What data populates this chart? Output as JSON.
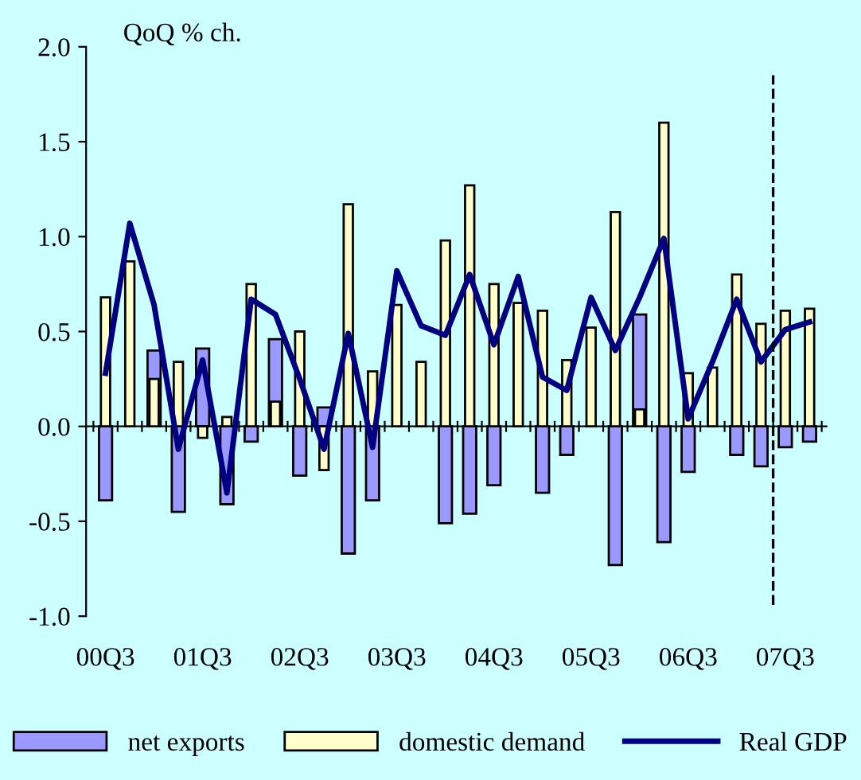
{
  "chart_data": {
    "type": "bar",
    "ylabel": "QoQ % ch.",
    "categories": [
      "00Q3",
      null,
      null,
      null,
      "01Q3",
      null,
      null,
      null,
      "02Q3",
      null,
      null,
      null,
      "03Q3",
      null,
      null,
      null,
      "04Q3",
      null,
      null,
      null,
      "05Q3",
      null,
      null,
      null,
      "06Q3",
      null,
      null,
      null,
      "07Q3",
      null
    ],
    "series": [
      {
        "name": "net exports",
        "color": "#9999ff",
        "values": [
          -0.39,
          null,
          0.4,
          -0.45,
          0.41,
          -0.41,
          -0.08,
          0.46,
          -0.26,
          0.1,
          -0.67,
          -0.39,
          null,
          null,
          -0.51,
          -0.46,
          -0.31,
          null,
          -0.35,
          -0.15,
          null,
          -0.73,
          0.59,
          -0.61,
          -0.24,
          null,
          -0.15,
          -0.21,
          -0.11,
          -0.08
        ]
      },
      {
        "name": "domestic demand",
        "color": "#ffffcc",
        "values": [
          0.68,
          0.87,
          0.25,
          0.34,
          -0.06,
          0.05,
          0.75,
          0.13,
          0.5,
          -0.23,
          1.17,
          0.29,
          0.64,
          0.34,
          0.98,
          1.27,
          0.75,
          0.65,
          0.61,
          0.35,
          0.52,
          1.13,
          0.09,
          1.6,
          0.28,
          0.31,
          0.8,
          0.54,
          0.61,
          0.62
        ]
      },
      {
        "name": "Real GDP",
        "type": "line",
        "color": "#000080",
        "values": [
          0.28,
          1.07,
          0.64,
          -0.12,
          0.35,
          -0.35,
          0.67,
          0.59,
          0.25,
          -0.12,
          0.49,
          -0.11,
          0.82,
          0.53,
          0.48,
          0.8,
          0.43,
          0.79,
          0.26,
          0.19,
          0.68,
          0.4,
          0.68,
          0.99,
          0.04,
          0.34,
          0.67,
          0.34,
          0.51,
          0.55
        ]
      }
    ],
    "ylim": [
      -1.0,
      2.0
    ],
    "yticks": [
      {
        "value": -1.0,
        "label": "-1.0"
      },
      {
        "value": -0.5,
        "label": "-0.5"
      },
      {
        "value": 0,
        "label": "0.0"
      },
      {
        "value": 0.5,
        "label": "0.5"
      },
      {
        "value": 1.0,
        "label": "1.0"
      },
      {
        "value": 1.5,
        "label": "1.5"
      },
      {
        "value": 2.0,
        "label": "2.0"
      }
    ],
    "legend": "bottom",
    "grid": false,
    "marker": "none",
    "line_style": "solid"
  }
}
